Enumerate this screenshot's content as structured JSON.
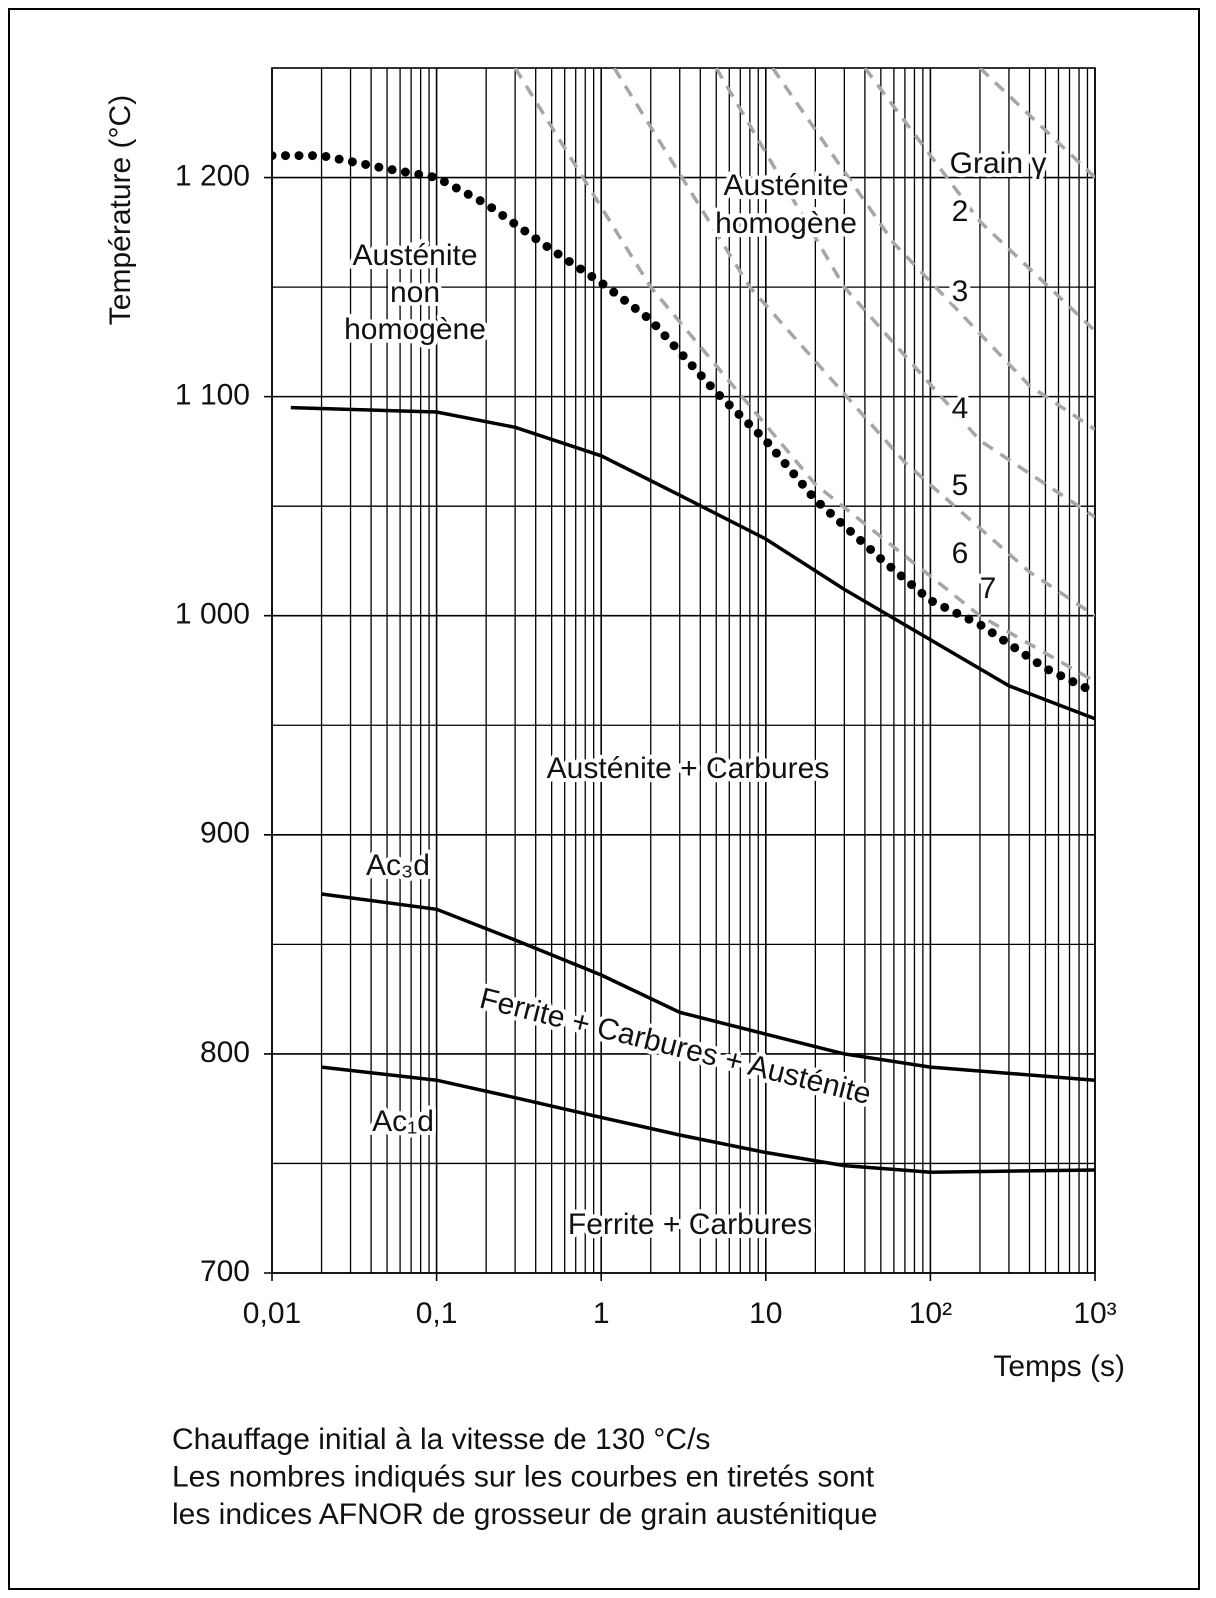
{
  "chart_data": {
    "type": "line",
    "xlabel": "Temps (s)",
    "ylabel": "Température (°C)",
    "xscale": "log",
    "xlim": [
      0.01,
      1000
    ],
    "ylim": [
      700,
      1250
    ],
    "xticks": [
      {
        "value": 0.01,
        "label": "0,01"
      },
      {
        "value": 0.1,
        "label": "0,1"
      },
      1,
      10,
      {
        "value": 100,
        "label": "10²"
      },
      {
        "value": 1000,
        "label": "10³"
      }
    ],
    "yticks": [
      700,
      800,
      900,
      {
        "value": 1000,
        "label": "1 000"
      },
      {
        "value": 1100,
        "label": "1 100"
      },
      {
        "value": 1200,
        "label": "1 200"
      }
    ],
    "grid": true,
    "grid_minor": true,
    "series": [
      {
        "color": "#000000",
        "style": "dotted",
        "x": [
          0.01,
          0.02,
          0.05,
          0.1,
          0.2,
          0.5,
          1,
          2,
          5,
          10,
          20,
          50,
          100,
          200,
          500,
          1000
        ],
        "values": [
          1210,
          1210,
          1204,
          1200,
          1188,
          1167,
          1152,
          1135,
          1102,
          1080,
          1053,
          1026,
          1007,
          996,
          976,
          965
        ]
      },
      {
        "color": "#000000",
        "style": "solid",
        "x": [
          0.013,
          0.1,
          0.3,
          1,
          3,
          10,
          30,
          100,
          300,
          1000
        ],
        "values": [
          1095,
          1093,
          1086,
          1073,
          1055,
          1035,
          1012,
          989,
          968,
          953
        ]
      },
      {
        "color": "#000000",
        "style": "solid",
        "x": [
          0.02,
          0.1,
          0.3,
          1,
          3,
          10,
          30,
          100,
          1000
        ],
        "values": [
          873,
          866,
          852,
          836,
          819,
          809,
          800,
          794,
          788
        ]
      },
      {
        "color": "#000000",
        "style": "solid",
        "x": [
          0.02,
          0.1,
          0.3,
          1,
          3,
          10,
          30,
          100,
          1000
        ],
        "values": [
          794,
          788,
          780,
          771,
          763,
          755,
          749,
          746,
          747
        ]
      },
      {
        "name": "2",
        "color": "#a6a6a6",
        "style": "dashed",
        "x": [
          200,
          1000
        ],
        "values": [
          1250,
          1200
        ]
      },
      {
        "name": "3",
        "color": "#a6a6a6",
        "style": "dashed",
        "x": [
          40,
          200,
          1000
        ],
        "values": [
          1250,
          1180,
          1130
        ]
      },
      {
        "name": "4",
        "color": "#a6a6a6",
        "style": "dashed",
        "x": [
          11,
          60,
          400,
          1000
        ],
        "values": [
          1250,
          1170,
          1105,
          1085
        ]
      },
      {
        "name": "5",
        "color": "#a6a6a6",
        "style": "dashed",
        "x": [
          5,
          30,
          200,
          1000
        ],
        "values": [
          1250,
          1150,
          1080,
          1045
        ]
      },
      {
        "name": "6",
        "color": "#a6a6a6",
        "style": "dashed",
        "x": [
          1.2,
          8,
          70,
          400,
          1000
        ],
        "values": [
          1250,
          1150,
          1070,
          1020,
          1000
        ]
      },
      {
        "name": "7",
        "color": "#a6a6a6",
        "style": "dashed",
        "x": [
          0.3,
          2,
          20,
          200,
          1000
        ],
        "values": [
          1250,
          1150,
          1060,
          1000,
          970
        ]
      }
    ],
    "annotations": [
      "Austénite\nhomogène",
      "Austénite\nnon\nhomogène",
      "Austénite + Carbures",
      "Ac₃d",
      "Ferrite + Carbures + Austénite",
      "Ac₁d",
      "Ferrite + Carbures",
      "Grain γ"
    ],
    "note": [
      "Chauffage initial à la vitesse de 130 °C/s",
      "Les nombres indiqués sur les courbes en tiretés sont",
      "les indices AFNOR de grosseur de grain austénitique"
    ]
  }
}
